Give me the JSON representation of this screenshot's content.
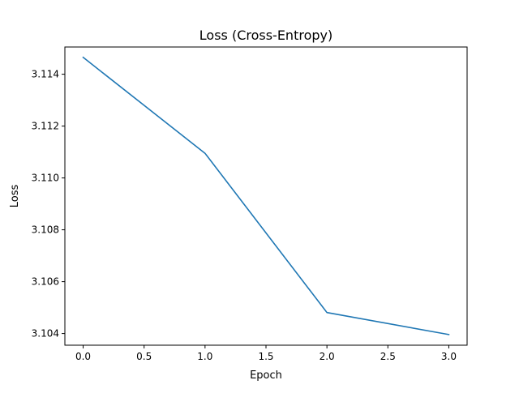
{
  "chart_data": {
    "type": "line",
    "title": "Loss (Cross-Entropy)",
    "xlabel": "Epoch",
    "ylabel": "Loss",
    "x": [
      0,
      1,
      2,
      3
    ],
    "series": [
      {
        "values": [
          3.11465,
          3.11095,
          3.10481,
          3.10396
        ],
        "color": "#1f77b4"
      }
    ],
    "xlim": [
      -0.15,
      3.15
    ],
    "ylim": [
      3.10355,
      3.11505
    ],
    "xticks": [
      0.0,
      0.5,
      1.0,
      1.5,
      2.0,
      2.5,
      3.0
    ],
    "xtick_labels": [
      "0.0",
      "0.5",
      "1.0",
      "1.5",
      "2.0",
      "2.5",
      "3.0"
    ],
    "yticks": [
      3.104,
      3.106,
      3.108,
      3.11,
      3.112,
      3.114
    ],
    "ytick_labels": [
      "3.104",
      "3.106",
      "3.108",
      "3.110",
      "3.112",
      "3.114"
    ],
    "grid": false,
    "legend": "none"
  }
}
